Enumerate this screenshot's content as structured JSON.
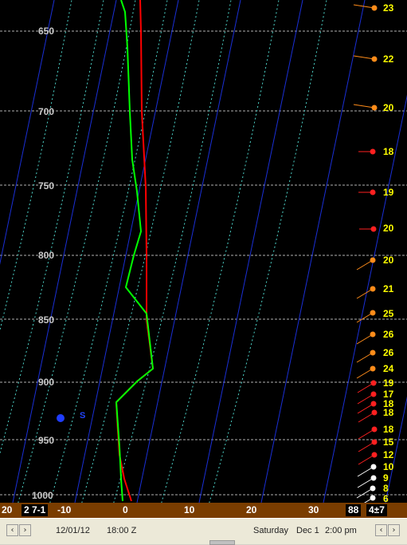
{
  "pressure_labels": [
    "650",
    "700",
    "750",
    "800",
    "850",
    "900",
    "950",
    "1000"
  ],
  "x_axis_labels": [
    "20",
    "-10",
    "0",
    "10",
    "20",
    "30"
  ],
  "x_axis_box_left": "2 7-1",
  "x_axis_box_right_a": "88",
  "x_axis_box_right_b": "4±7",
  "surface_marker_label": "S",
  "wind_speeds": [
    "23",
    "22",
    "20",
    "18",
    "19",
    "20",
    "20",
    "21",
    "25",
    "26",
    "26",
    "24",
    "19",
    "17",
    "18",
    "18",
    "18",
    "15",
    "12",
    "10",
    "9",
    "8",
    "6"
  ],
  "status": {
    "left_arrow_1": "‹",
    "right_arrow_1": "›",
    "date": "12/01/12",
    "time": "18:00 Z",
    "weekday": "Saturday",
    "local_date": "Dec 1",
    "local_time": "2:00 pm",
    "left_arrow_2": "‹",
    "right_arrow_2": "›"
  },
  "colors": {
    "background": "#000000",
    "temperature_line": "#ff0000",
    "dewpoint_line": "#00ff00",
    "isotherm": "#1a2fd6",
    "dry_adiabat": "#4dd2c8",
    "isobar": "#b0b0b0",
    "wind_label": "#ffff00",
    "axis_bar": "#7a3d00"
  }
}
